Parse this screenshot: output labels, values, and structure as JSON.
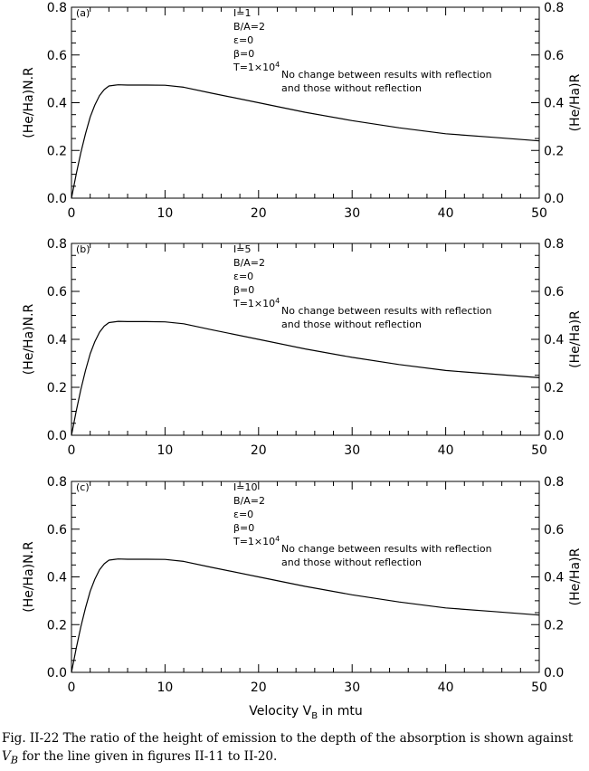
{
  "chart_data": [
    {
      "type": "line",
      "panel_label": "(a)",
      "annotations": [
        "I=1",
        "B/A=2",
        "ε=0",
        "β=0"
      ],
      "temperature": {
        "prefix": "T=1×10",
        "exponent": "4"
      },
      "note": [
        "No change between results with reflection",
        "and those without reflection"
      ],
      "ylabel_left": "(He/Ha)N.R",
      "ylabel_right": "(He/Ha)R",
      "xlabel": "",
      "xlim": [
        0,
        50
      ],
      "ylim": [
        0,
        0.8
      ],
      "x_ticks": [
        "0",
        "10",
        "20",
        "30",
        "40",
        "50"
      ],
      "y_ticks": [
        "0.0",
        "0.2",
        "0.4",
        "0.6",
        "0.8"
      ],
      "grid": false,
      "series": [
        {
          "x": [
            0,
            0.5,
            1,
            1.5,
            2,
            2.5,
            3,
            3.5,
            4,
            5,
            6,
            8,
            10,
            12,
            15,
            20,
            25,
            30,
            35,
            40,
            45,
            50
          ],
          "y": [
            0.0,
            0.1,
            0.19,
            0.27,
            0.34,
            0.39,
            0.43,
            0.455,
            0.47,
            0.475,
            0.474,
            0.474,
            0.473,
            0.465,
            0.44,
            0.4,
            0.36,
            0.325,
            0.295,
            0.27,
            0.255,
            0.24
          ]
        }
      ]
    },
    {
      "type": "line",
      "panel_label": "(b)",
      "annotations": [
        "I=5",
        "B/A=2",
        "ε=0",
        "β=0"
      ],
      "temperature": {
        "prefix": "T=1×10",
        "exponent": "4"
      },
      "note": [
        "No change between results with reflection",
        "and those without reflection"
      ],
      "ylabel_left": "(He/Ha)N.R",
      "ylabel_right": "(He/Ha)R",
      "xlabel": "",
      "xlim": [
        0,
        50
      ],
      "ylim": [
        0,
        0.8
      ],
      "x_ticks": [
        "0",
        "10",
        "20",
        "30",
        "40",
        "50"
      ],
      "y_ticks": [
        "0.0",
        "0.2",
        "0.4",
        "0.6",
        "0.8"
      ],
      "grid": false,
      "series": [
        {
          "x": [
            0,
            0.5,
            1,
            1.5,
            2,
            2.5,
            3,
            3.5,
            4,
            5,
            6,
            8,
            10,
            12,
            15,
            20,
            25,
            30,
            35,
            40,
            45,
            50
          ],
          "y": [
            0.0,
            0.1,
            0.19,
            0.27,
            0.34,
            0.39,
            0.43,
            0.455,
            0.47,
            0.475,
            0.474,
            0.474,
            0.473,
            0.465,
            0.44,
            0.4,
            0.36,
            0.325,
            0.295,
            0.27,
            0.255,
            0.24
          ]
        }
      ]
    },
    {
      "type": "line",
      "panel_label": "(c)",
      "annotations": [
        "I=10",
        "B/A=2",
        "ε=0",
        "β=0"
      ],
      "temperature": {
        "prefix": "T=1×10",
        "exponent": "4"
      },
      "note": [
        "No change between results with reflection",
        "and those without reflection"
      ],
      "ylabel_left": "(He/Ha)N.R",
      "ylabel_right": "(He/Ha)R",
      "xlabel": "Velocity V",
      "xlabel_sub": "B",
      "xlabel_suffix": " in mtu",
      "xlim": [
        0,
        50
      ],
      "ylim": [
        0,
        0.8
      ],
      "x_ticks": [
        "0",
        "10",
        "20",
        "30",
        "40",
        "50"
      ],
      "y_ticks": [
        "0.0",
        "0.2",
        "0.4",
        "0.6",
        "0.8"
      ],
      "grid": false,
      "series": [
        {
          "x": [
            0,
            0.5,
            1,
            1.5,
            2,
            2.5,
            3,
            3.5,
            4,
            5,
            6,
            8,
            10,
            12,
            15,
            20,
            25,
            30,
            35,
            40,
            45,
            50
          ],
          "y": [
            0.0,
            0.1,
            0.19,
            0.27,
            0.34,
            0.39,
            0.43,
            0.455,
            0.47,
            0.475,
            0.474,
            0.474,
            0.473,
            0.465,
            0.44,
            0.4,
            0.36,
            0.325,
            0.295,
            0.27,
            0.255,
            0.24
          ]
        }
      ]
    }
  ],
  "caption": {
    "line1": "Fig. II-22 The ratio of the height of emission to the depth of the absorption is shown against",
    "var": "V",
    "var_sub": "B",
    "line2_rest": " for the line given in figures II-11 to II-20."
  }
}
